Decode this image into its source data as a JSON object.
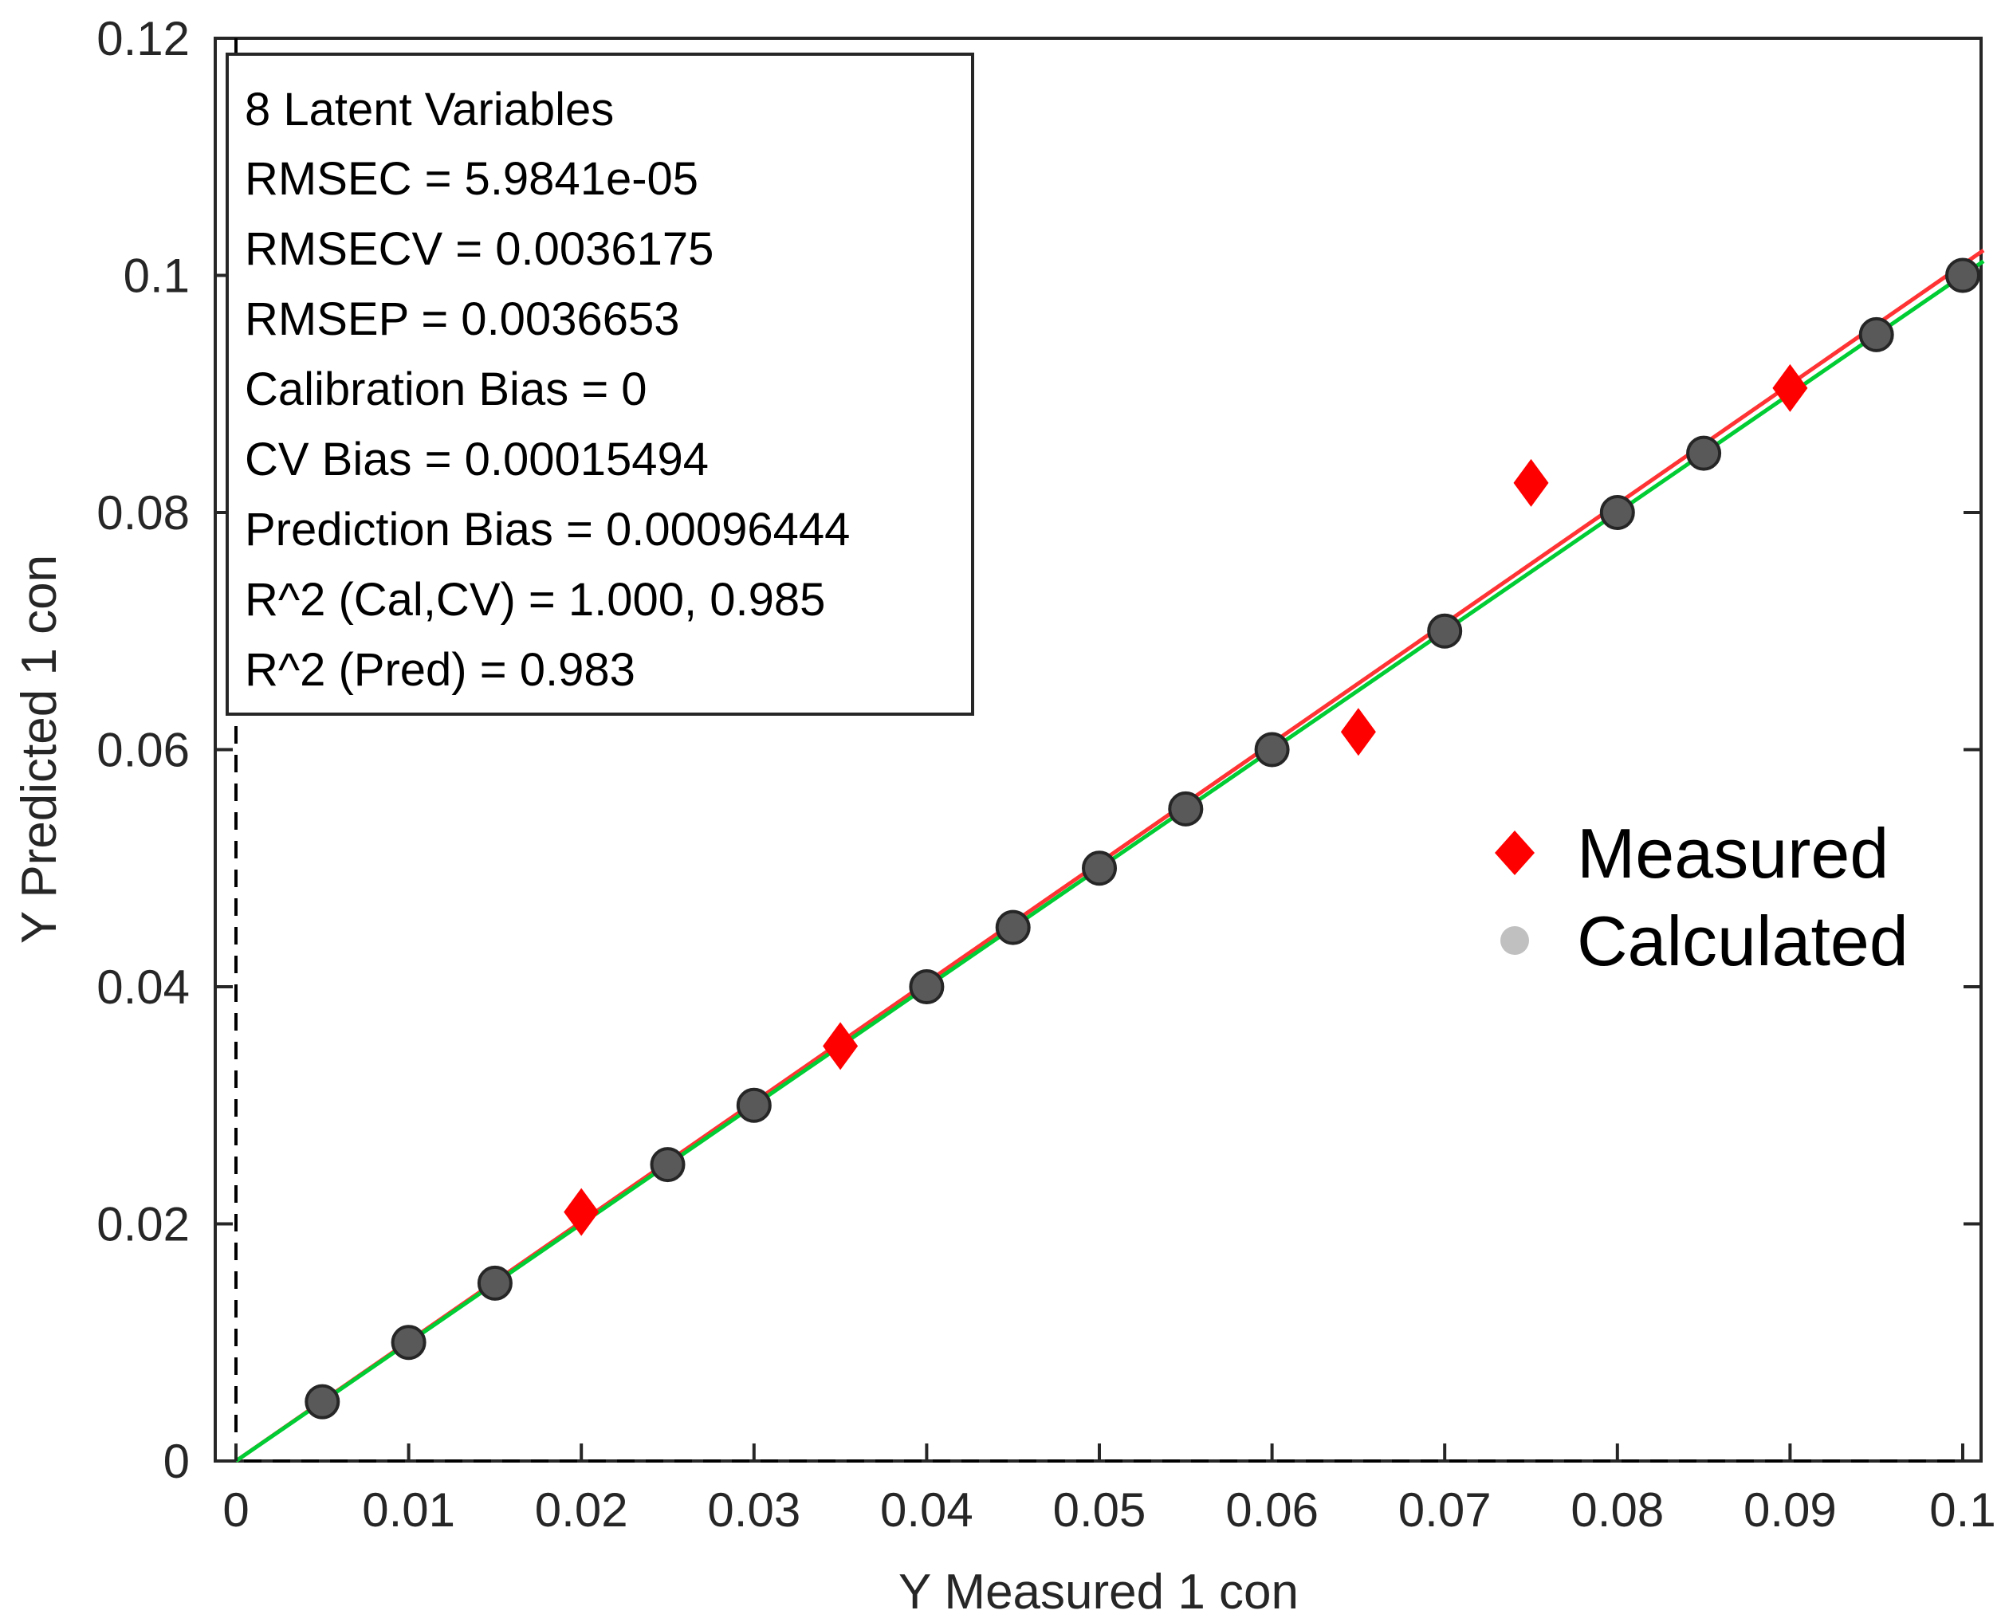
{
  "chart_data": {
    "type": "scatter",
    "xlabel": "Y Measured 1 con",
    "ylabel": "Y Predicted 1 con",
    "xlim": [
      0,
      0.1
    ],
    "ylim": [
      0,
      0.12
    ],
    "xticks": [
      "0",
      "0.01",
      "0.02",
      "0.03",
      "0.04",
      "0.05",
      "0.06",
      "0.07",
      "0.08",
      "0.09",
      "0.1"
    ],
    "yticks": [
      "0",
      "0.02",
      "0.04",
      "0.06",
      "0.08",
      "0.1",
      "0.12"
    ],
    "grid": false,
    "stats_box": [
      "8 Latent Variables",
      "RMSEC = 5.9841e-05",
      "RMSECV = 0.0036175",
      "RMSEP = 0.0036653",
      "Calibration Bias = 0",
      "CV Bias = 0.00015494",
      "Prediction Bias = 0.00096444",
      "R^2 (Cal,CV) = 1.000, 0.985",
      "R^2 (Pred) = 0.983"
    ],
    "legend": {
      "placement": "right-middle",
      "entries": [
        "Measured",
        "Calculated"
      ]
    },
    "series": [
      {
        "name": "Measured",
        "marker": "diamond",
        "color": "#ff0000",
        "x": [
          0.02,
          0.035,
          0.065,
          0.075,
          0.09
        ],
        "y": [
          0.021,
          0.035,
          0.0615,
          0.0825,
          0.0905
        ]
      },
      {
        "name": "Calculated",
        "marker": "circle",
        "color": "#595959",
        "x": [
          0.005,
          0.01,
          0.015,
          0.025,
          0.03,
          0.04,
          0.045,
          0.05,
          0.055,
          0.06,
          0.07,
          0.08,
          0.085,
          0.095,
          0.1
        ],
        "y": [
          0.005,
          0.01,
          0.015,
          0.025,
          0.03,
          0.04,
          0.045,
          0.05,
          0.055,
          0.06,
          0.07,
          0.08,
          0.085,
          0.095,
          0.1
        ]
      }
    ],
    "fit_lines": [
      {
        "name": "prediction-fit",
        "color": "#ff3333",
        "x": [
          0,
          0.1
        ],
        "y": [
          0,
          0.1009
        ]
      },
      {
        "name": "calibration-fit",
        "color": "#00cc33",
        "x": [
          0,
          0.1
        ],
        "y": [
          0,
          0.1
        ]
      }
    ],
    "reference_lines": [
      {
        "name": "x-zero-dashed",
        "axis": "x",
        "value": 0
      },
      {
        "name": "y-zero-dashed",
        "axis": "y",
        "value": 0
      }
    ]
  }
}
